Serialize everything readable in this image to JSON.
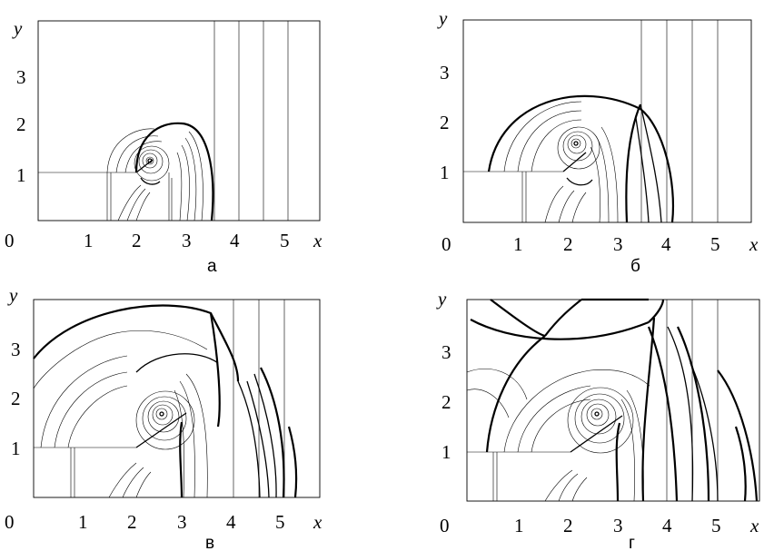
{
  "panels": [
    {
      "id": "a",
      "caption": "а",
      "x_axis_label": "x",
      "y_axis_label": "y",
      "origin_label": "0",
      "x_ticks": [
        "1",
        "2",
        "3",
        "4",
        "5"
      ],
      "y_ticks": [
        "1",
        "2",
        "3"
      ]
    },
    {
      "id": "b",
      "caption": "б",
      "x_axis_label": "x",
      "y_axis_label": "y",
      "origin_label": "0",
      "x_ticks": [
        "1",
        "2",
        "3",
        "4",
        "5"
      ],
      "y_ticks": [
        "1",
        "2",
        "3"
      ]
    },
    {
      "id": "v",
      "caption": "в",
      "x_axis_label": "x",
      "y_axis_label": "y",
      "origin_label": "0",
      "x_ticks": [
        "1",
        "2",
        "3",
        "4",
        "5"
      ],
      "y_ticks": [
        "1",
        "2",
        "3"
      ]
    },
    {
      "id": "g",
      "caption": "г",
      "x_axis_label": "x",
      "y_axis_label": "y",
      "origin_label": "0",
      "x_ticks": [
        "1",
        "2",
        "3",
        "4",
        "5"
      ],
      "y_ticks": [
        "1",
        "2",
        "3"
      ]
    }
  ]
}
